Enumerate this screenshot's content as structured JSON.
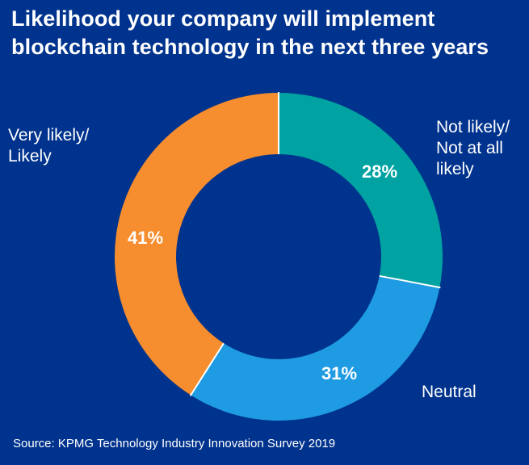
{
  "chart_data": {
    "type": "pie",
    "title": "Likelihood your company will implement blockchain technology in the next three years",
    "title_lines": [
      "Likelihood your company will implement",
      "blockchain technology in the next three years"
    ],
    "series": [
      {
        "name": "Not likely/ Not at all likely",
        "value": 28,
        "label": "28%",
        "color": "#00A3A1",
        "label_lines": [
          "Not likely/",
          "Not at all",
          "likely"
        ]
      },
      {
        "name": "Neutral",
        "value": 31,
        "label": "31%",
        "color": "#1E9BE2",
        "label_lines": [
          "Neutral"
        ]
      },
      {
        "name": "Very likely/ Likely",
        "value": 41,
        "label": "41%",
        "color": "#F68D2E",
        "label_lines": [
          "Very likely/",
          "Likely"
        ]
      }
    ],
    "source": "Source: KPMG Technology Industry Innovation Survey 2019"
  },
  "colors": {
    "background": "#00338D",
    "separator": "#ffffff"
  }
}
